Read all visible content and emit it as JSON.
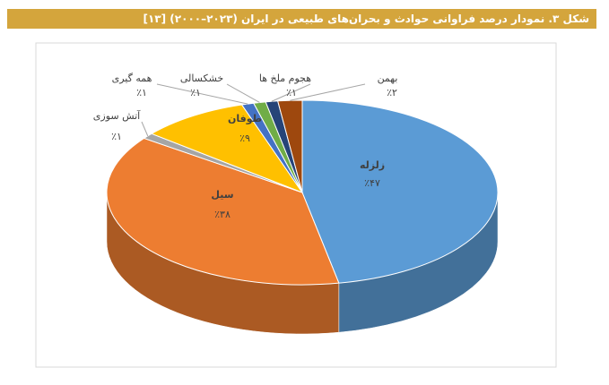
{
  "chart_data": {
    "type": "pie",
    "title": "شکل ۳. نمودار درصد فراوانی حوادث و بحران‌های طبیعی در ایران (۲۰۲۳–۲۰۰۰) [۱۳]",
    "categories": [
      "زلزله",
      "سیل",
      "آتش سوزی",
      "طوفان",
      "همه گیری",
      "خشکسالی",
      "هجوم ملخ ها",
      "بهمن"
    ],
    "values": [
      47,
      38,
      1,
      9,
      1,
      1,
      1,
      2
    ],
    "value_labels": [
      "٪۴۷",
      "٪۳۸",
      "٪۱",
      "٪۹",
      "٪۱",
      "٪۱",
      "٪۱",
      "٪۲"
    ],
    "colors": [
      "#5b9bd5",
      "#ed7d31",
      "#a5a5a5",
      "#ffc000",
      "#4472c4",
      "#70ad47",
      "#264478",
      "#9e480e"
    ]
  }
}
